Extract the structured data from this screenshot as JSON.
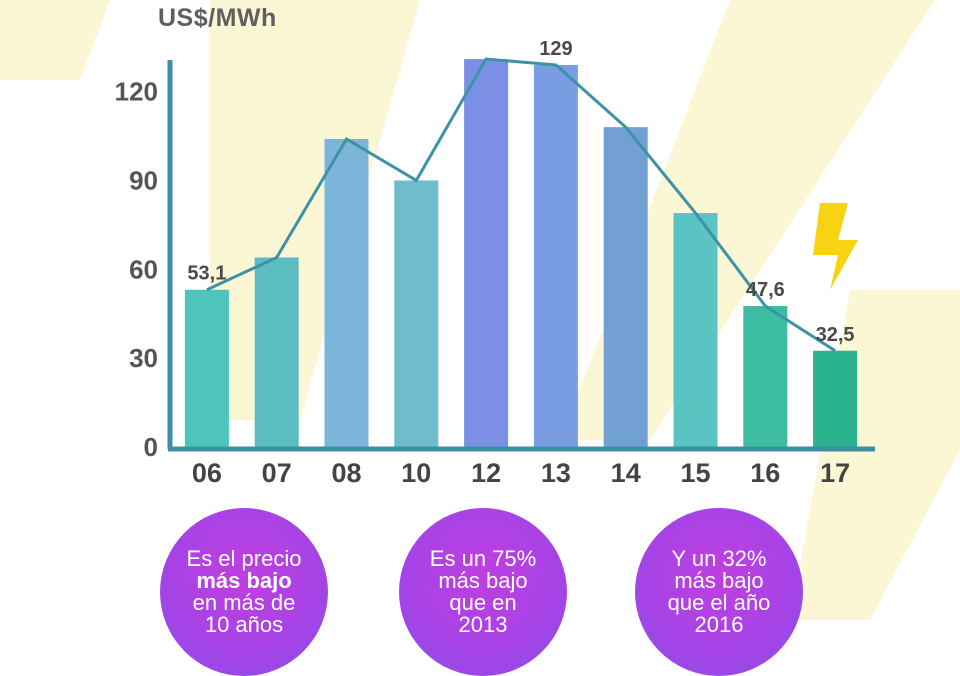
{
  "unit_label": "US$/MWh",
  "chart_data": {
    "type": "bar",
    "overlay": "line",
    "title": "",
    "xlabel": "",
    "ylabel": "US$/MWh",
    "ylim": [
      0,
      130
    ],
    "yticks": [
      0,
      30,
      60,
      90,
      120
    ],
    "yticks_labels": [
      "0",
      "30",
      "60",
      "90",
      "120"
    ],
    "categories": [
      "06",
      "07",
      "08",
      "10",
      "12",
      "13",
      "14",
      "15",
      "16",
      "17"
    ],
    "values": [
      53.1,
      64,
      104,
      90,
      131,
      129,
      108,
      79,
      47.6,
      32.5
    ],
    "data_labels": [
      {
        "index": 0,
        "text": "53,1"
      },
      {
        "index": 5,
        "text": "129"
      },
      {
        "index": 8,
        "text": "47,6"
      },
      {
        "index": 9,
        "text": "32,5"
      }
    ],
    "colors": [
      "#4dc5bd",
      "#5cbdc2",
      "#7bb5da",
      "#6fbccd",
      "#7b8fe4",
      "#7a9ce2",
      "#73a0d2",
      "#5ac4c3",
      "#3cbca0",
      "#2ab38e"
    ],
    "line_color": "#3d93a5",
    "axis_color": "#3d8fa3"
  },
  "bubbles": [
    {
      "lines": [
        "Es el precio",
        "más bajo",
        "en más de",
        "10 años"
      ],
      "bold_index": 1
    },
    {
      "lines": [
        "Es un 75%",
        "más bajo",
        "que en",
        "2013"
      ],
      "bold_index": -1
    },
    {
      "lines": [
        "Y un 32%",
        "más bajo",
        "que el año",
        "2016"
      ],
      "bold_index": -1
    }
  ],
  "icons": {
    "lightning": "lightning-bolt-icon"
  }
}
